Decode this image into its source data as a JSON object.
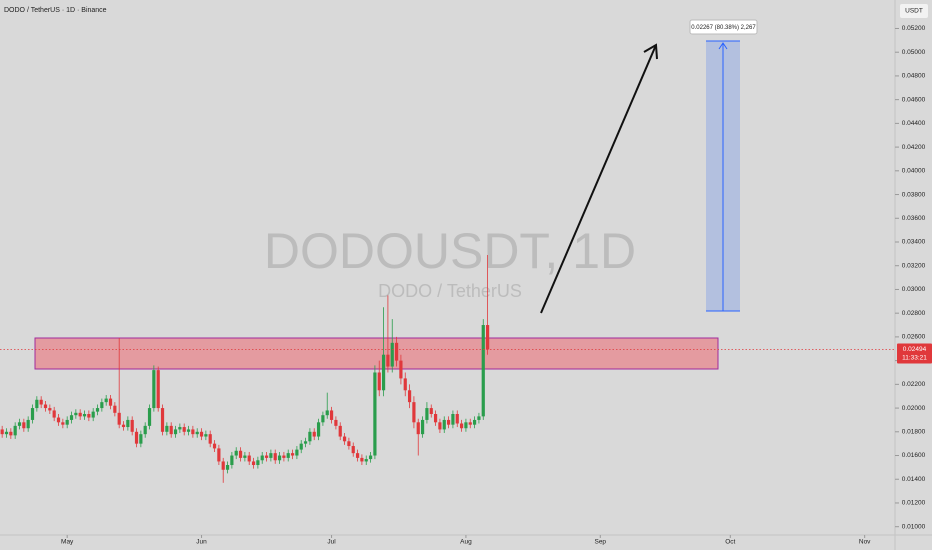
{
  "chart_data": {
    "type": "candlestick",
    "title": "DODO / TetherUS · 1D · Binance",
    "watermark_symbol": "DODOUSDT, 1D",
    "watermark_name": "DODO / TetherUS",
    "currency": "USDT",
    "measure_label": "0.02267 (80.38%) 2,267",
    "last_price": 0.02494,
    "countdown": "11:33:21",
    "up_color": "#2a9d4c",
    "down_color": "#e0383b",
    "open": [
      0.0182,
      0.0178,
      0.018,
      0.0177,
      0.0185,
      0.0188,
      0.0183,
      0.019,
      0.02,
      0.0207,
      0.0203,
      0.02,
      0.0198,
      0.0192,
      0.0188,
      0.0186,
      0.019,
      0.0194,
      0.0196,
      0.0193,
      0.0195,
      0.0192,
      0.0197,
      0.02,
      0.0205,
      0.0208,
      0.0202,
      0.0196,
      0.0186,
      0.0184,
      0.019,
      0.018,
      0.017,
      0.0178,
      0.0185,
      0.02,
      0.0232,
      0.02,
      0.018,
      0.0185,
      0.0178,
      0.0182,
      0.0184,
      0.018,
      0.0182,
      0.0178,
      0.018,
      0.0176,
      0.0178,
      0.017,
      0.0166,
      0.0155,
      0.0148,
      0.0152,
      0.016,
      0.0164,
      0.0158,
      0.016,
      0.0155,
      0.0152,
      0.0156,
      0.016,
      0.0158,
      0.0162,
      0.0156,
      0.016,
      0.0158,
      0.0162,
      0.016,
      0.0165,
      0.017,
      0.0172,
      0.018,
      0.0176,
      0.0188,
      0.0194,
      0.0198,
      0.019,
      0.0185,
      0.0176,
      0.0172,
      0.0168,
      0.0162,
      0.0158,
      0.0155,
      0.0157,
      0.016,
      0.023,
      0.0215,
      0.0245,
      0.0235,
      0.0255,
      0.024,
      0.0225,
      0.0215,
      0.0205,
      0.0188,
      0.0178,
      0.019,
      0.02,
      0.0195,
      0.0188,
      0.0182,
      0.019,
      0.0186,
      0.0195,
      0.0187,
      0.0183,
      0.0188,
      0.0186,
      0.019,
      0.0193,
      0.027
    ],
    "high": [
      0.0185,
      0.0183,
      0.0183,
      0.0188,
      0.0191,
      0.0191,
      0.0193,
      0.0203,
      0.021,
      0.021,
      0.0206,
      0.0203,
      0.0201,
      0.0195,
      0.0191,
      0.0193,
      0.0197,
      0.0199,
      0.0199,
      0.0198,
      0.0198,
      0.02,
      0.0203,
      0.0208,
      0.0211,
      0.0211,
      0.0205,
      0.0259,
      0.0189,
      0.0193,
      0.0193,
      0.0183,
      0.0181,
      0.0188,
      0.0203,
      0.0236,
      0.0235,
      0.0203,
      0.0188,
      0.0188,
      0.0185,
      0.0187,
      0.0187,
      0.0185,
      0.0185,
      0.0183,
      0.0183,
      0.0181,
      0.0181,
      0.0173,
      0.0169,
      0.0158,
      0.0155,
      0.0163,
      0.0167,
      0.0167,
      0.0163,
      0.0163,
      0.0158,
      0.0159,
      0.0163,
      0.0163,
      0.0165,
      0.0165,
      0.0163,
      0.0163,
      0.0165,
      0.0165,
      0.0168,
      0.0173,
      0.0175,
      0.0183,
      0.0183,
      0.0191,
      0.0197,
      0.0213,
      0.0201,
      0.0193,
      0.0188,
      0.0179,
      0.0175,
      0.0171,
      0.0165,
      0.0161,
      0.016,
      0.0163,
      0.0236,
      0.024,
      0.0285,
      0.0295,
      0.0275,
      0.026,
      0.0245,
      0.023,
      0.022,
      0.021,
      0.0191,
      0.0193,
      0.0205,
      0.0203,
      0.0198,
      0.0191,
      0.0193,
      0.0193,
      0.0198,
      0.0198,
      0.019,
      0.0191,
      0.0191,
      0.0193,
      0.0196,
      0.0275,
      0.0329
    ],
    "low": [
      0.0175,
      0.0175,
      0.0174,
      0.0174,
      0.0182,
      0.018,
      0.018,
      0.0187,
      0.0197,
      0.02,
      0.0197,
      0.0195,
      0.0189,
      0.0185,
      0.0183,
      0.0183,
      0.0187,
      0.0191,
      0.019,
      0.019,
      0.0189,
      0.0189,
      0.0194,
      0.0197,
      0.0202,
      0.0199,
      0.0193,
      0.0183,
      0.0181,
      0.0181,
      0.0177,
      0.0167,
      0.0167,
      0.0175,
      0.0182,
      0.0197,
      0.0197,
      0.0177,
      0.0177,
      0.0175,
      0.0175,
      0.0179,
      0.0177,
      0.0177,
      0.0175,
      0.0175,
      0.0173,
      0.0173,
      0.0167,
      0.0163,
      0.0152,
      0.0137,
      0.0145,
      0.0149,
      0.0157,
      0.0155,
      0.0155,
      0.0152,
      0.0149,
      0.0149,
      0.0153,
      0.0155,
      0.0155,
      0.0153,
      0.0153,
      0.0155,
      0.0155,
      0.0157,
      0.0157,
      0.0162,
      0.0167,
      0.0169,
      0.0173,
      0.0173,
      0.0185,
      0.0191,
      0.0187,
      0.0182,
      0.0173,
      0.0169,
      0.0165,
      0.0159,
      0.0155,
      0.0152,
      0.0152,
      0.0154,
      0.0157,
      0.021,
      0.021,
      0.023,
      0.023,
      0.0235,
      0.022,
      0.021,
      0.02,
      0.0183,
      0.016,
      0.0175,
      0.0187,
      0.0192,
      0.0185,
      0.0179,
      0.0179,
      0.0183,
      0.0183,
      0.0184,
      0.018,
      0.018,
      0.0183,
      0.0183,
      0.0187,
      0.019,
      0.0245
    ],
    "close": [
      0.0178,
      0.018,
      0.0177,
      0.0185,
      0.0188,
      0.0183,
      0.019,
      0.02,
      0.0207,
      0.0203,
      0.02,
      0.0198,
      0.0192,
      0.0188,
      0.0186,
      0.019,
      0.0194,
      0.0196,
      0.0193,
      0.0195,
      0.0192,
      0.0197,
      0.02,
      0.0205,
      0.0208,
      0.0202,
      0.0196,
      0.0186,
      0.0184,
      0.019,
      0.018,
      0.017,
      0.0178,
      0.0185,
      0.02,
      0.0232,
      0.02,
      0.018,
      0.0185,
      0.0178,
      0.0182,
      0.0184,
      0.018,
      0.0182,
      0.0178,
      0.018,
      0.0176,
      0.0178,
      0.017,
      0.0166,
      0.0155,
      0.0148,
      0.0152,
      0.016,
      0.0164,
      0.0158,
      0.016,
      0.0155,
      0.0152,
      0.0156,
      0.016,
      0.0158,
      0.0162,
      0.0156,
      0.016,
      0.0158,
      0.0162,
      0.016,
      0.0165,
      0.017,
      0.0172,
      0.018,
      0.0176,
      0.0188,
      0.0194,
      0.0198,
      0.019,
      0.0185,
      0.0176,
      0.0172,
      0.0168,
      0.0162,
      0.0158,
      0.0155,
      0.0157,
      0.016,
      0.023,
      0.0215,
      0.0245,
      0.0235,
      0.0255,
      0.024,
      0.0225,
      0.0215,
      0.0205,
      0.0188,
      0.0178,
      0.019,
      0.02,
      0.0195,
      0.0188,
      0.0182,
      0.019,
      0.0186,
      0.0195,
      0.0187,
      0.0183,
      0.0188,
      0.0186,
      0.019,
      0.0193,
      0.027,
      0.02494
    ],
    "xlim": [
      -0.5,
      206
    ],
    "xticks": [
      {
        "value": 15,
        "label": "May"
      },
      {
        "value": 46,
        "label": "Jun"
      },
      {
        "value": 76,
        "label": "Jul"
      },
      {
        "value": 107,
        "label": "Aug"
      },
      {
        "value": 138,
        "label": "Sep"
      },
      {
        "value": 168,
        "label": "Oct"
      },
      {
        "value": 199,
        "label": "Nov"
      }
    ],
    "ylim": [
      0.0093,
      0.0544
    ],
    "yticks": [
      {
        "value": 0.01,
        "label": "0.01000"
      },
      {
        "value": 0.012,
        "label": "0.01200"
      },
      {
        "value": 0.014,
        "label": "0.01400"
      },
      {
        "value": 0.016,
        "label": "0.01600"
      },
      {
        "value": 0.018,
        "label": "0.01800"
      },
      {
        "value": 0.02,
        "label": "0.02000"
      },
      {
        "value": 0.022,
        "label": "0.02200"
      },
      {
        "value": 0.024,
        "label": "0.02400"
      },
      {
        "value": 0.026,
        "label": "0.02600"
      },
      {
        "value": 0.028,
        "label": "0.02800"
      },
      {
        "value": 0.03,
        "label": "0.03000"
      },
      {
        "value": 0.032,
        "label": "0.03200"
      },
      {
        "value": 0.034,
        "label": "0.03400"
      },
      {
        "value": 0.036,
        "label": "0.03600"
      },
      {
        "value": 0.038,
        "label": "0.03800"
      },
      {
        "value": 0.04,
        "label": "0.04000"
      },
      {
        "value": 0.042,
        "label": "0.04200"
      },
      {
        "value": 0.044,
        "label": "0.04400"
      },
      {
        "value": 0.046,
        "label": "0.04600"
      },
      {
        "value": 0.048,
        "label": "0.04800"
      },
      {
        "value": 0.05,
        "label": "0.05000"
      },
      {
        "value": 0.052,
        "label": "0.05200"
      }
    ]
  }
}
